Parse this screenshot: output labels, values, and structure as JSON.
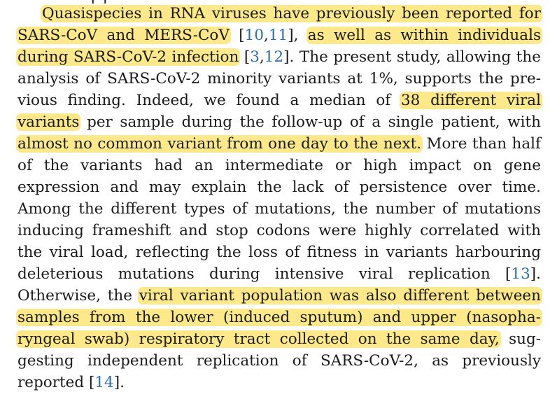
{
  "colors": {
    "highlight": "#fde98a",
    "text": "#1a1a1a",
    "link": "#2a6fb0"
  },
  "cut_top_text": "[   ]",
  "lines": [
    {
      "segments": [
        {
          "t": "Quasispecies in RNA viruses have previously been reported for",
          "hl": true
        }
      ],
      "indent": true
    },
    {
      "segments": [
        {
          "t": "SARS-CoV and MERS-CoV",
          "hl": true
        },
        {
          "t": " ["
        },
        {
          "t": "10",
          "ref": true
        },
        {
          "t": ","
        },
        {
          "t": "11",
          "ref": true
        },
        {
          "t": "], "
        },
        {
          "t": "as well as within individuals",
          "hl": true
        }
      ]
    },
    {
      "segments": [
        {
          "t": "during SARS-CoV-2 infection",
          "hl": true
        },
        {
          "t": " ["
        },
        {
          "t": "3",
          "ref": true
        },
        {
          "t": ","
        },
        {
          "t": "12",
          "ref": true
        },
        {
          "t": "]. The present study, allowing the"
        }
      ]
    },
    {
      "segments": [
        {
          "t": "analysis of SARS-CoV-2 minority variants at 1%, supports the pre-"
        }
      ]
    },
    {
      "segments": [
        {
          "t": "vious finding. Indeed, we found a median of "
        },
        {
          "t": "38 different viral",
          "hl": true
        }
      ]
    },
    {
      "segments": [
        {
          "t": "variants",
          "hl": true
        },
        {
          "t": " per sample during the follow-up of a single patient, with"
        }
      ]
    },
    {
      "segments": [
        {
          "t": "almost no common variant from one day to the next.",
          "hl": true
        },
        {
          "t": " More than half"
        }
      ]
    },
    {
      "segments": [
        {
          "t": "of the variants had an intermediate or high impact on gene"
        }
      ]
    },
    {
      "segments": [
        {
          "t": "expression and may explain the lack of persistence over time."
        }
      ]
    },
    {
      "segments": [
        {
          "t": "Among the different types of mutations, the number of mutations"
        }
      ]
    },
    {
      "segments": [
        {
          "t": "inducing frameshift and stop codons were highly correlated with"
        }
      ]
    },
    {
      "segments": [
        {
          "t": "the viral load, reflecting the loss of fitness in variants harbouring"
        }
      ]
    },
    {
      "segments": [
        {
          "t": "deleterious mutations during intensive viral replication ["
        },
        {
          "t": "13",
          "ref": true
        },
        {
          "t": "]."
        }
      ]
    },
    {
      "segments": [
        {
          "t": "Otherwise, the "
        },
        {
          "t": "viral variant population was also different between",
          "hl": true
        }
      ]
    },
    {
      "segments": [
        {
          "t": "samples from the lower (induced sputum) and upper (nasopha-",
          "hl": true
        }
      ]
    },
    {
      "segments": [
        {
          "t": "ryngeal swab) respiratory tract collected on the same day,",
          "hl": true
        },
        {
          "t": " sug-"
        }
      ]
    },
    {
      "segments": [
        {
          "t": "gesting independent replication of SARS-CoV-2, as previously"
        }
      ]
    },
    {
      "segments": [
        {
          "t": "reported ["
        },
        {
          "t": "14",
          "ref": true
        },
        {
          "t": "]."
        }
      ],
      "last": true
    }
  ]
}
